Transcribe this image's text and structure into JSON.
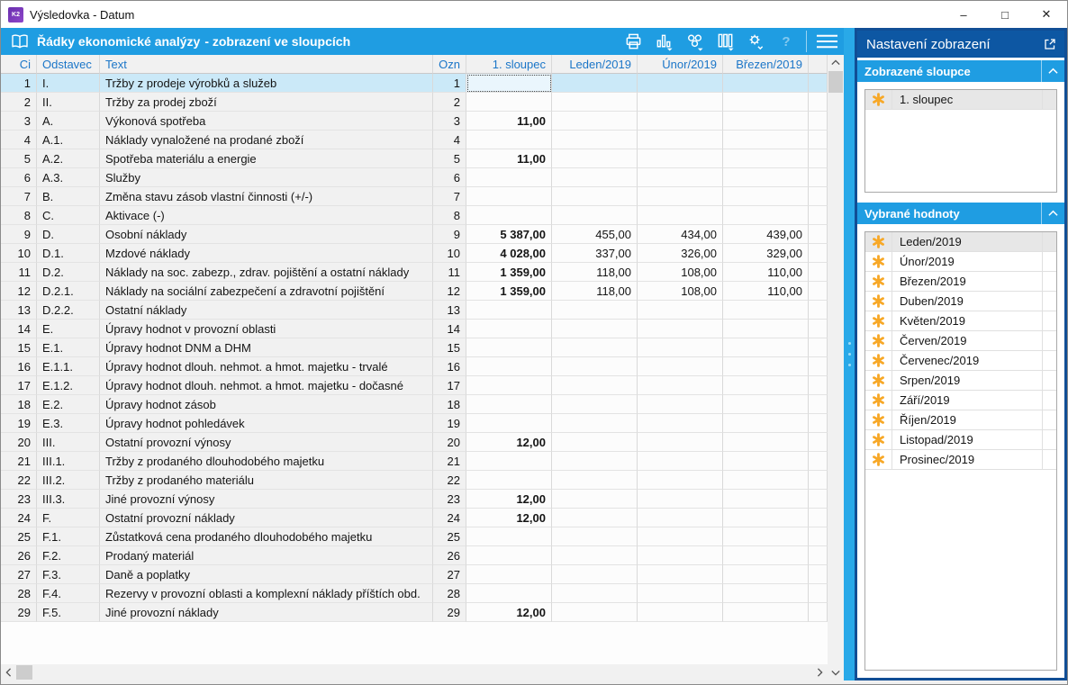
{
  "window": {
    "title": "Výsledovka - Datum",
    "logo": "K2",
    "controls": {
      "minimize": "–",
      "maximize": "□",
      "close": "✕"
    }
  },
  "toolbar": {
    "title": "Řádky ekonomické analýzy",
    "subtitle": "- zobrazení ve sloupcích",
    "help_label": "?",
    "icons": [
      "book-icon",
      "print-icon",
      "chart-icon",
      "gears-icon",
      "columns-icon",
      "settings-icon",
      "help-icon",
      "menu-icon"
    ]
  },
  "table": {
    "selected_row_index": 0,
    "focused_column": "col1",
    "columns": [
      {
        "key": "ci",
        "label": "Ci",
        "align": "right"
      },
      {
        "key": "odstavec",
        "label": "Odstavec",
        "align": "left"
      },
      {
        "key": "text",
        "label": "Text",
        "align": "left"
      },
      {
        "key": "ozn",
        "label": "Ozn",
        "align": "right"
      },
      {
        "key": "col1",
        "label": "1. sloupec",
        "align": "right"
      },
      {
        "key": "leden",
        "label": "Leden/2019",
        "align": "right"
      },
      {
        "key": "unor",
        "label": "Únor/2019",
        "align": "right"
      },
      {
        "key": "brezen",
        "label": "Březen/2019",
        "align": "right"
      },
      {
        "key": "fill",
        "label": "",
        "align": "left"
      }
    ],
    "rows": [
      {
        "ci": "1",
        "odstavec": "I.",
        "text": "Tržby z prodeje výrobků a služeb",
        "ozn": "1",
        "col1": "",
        "leden": "",
        "unor": "",
        "brezen": ""
      },
      {
        "ci": "2",
        "odstavec": "II.",
        "text": "Tržby za prodej zboží",
        "ozn": "2",
        "col1": "",
        "leden": "",
        "unor": "",
        "brezen": ""
      },
      {
        "ci": "3",
        "odstavec": "A.",
        "text": "Výkonová spotřeba",
        "ozn": "3",
        "col1": "11,00",
        "leden": "",
        "unor": "",
        "brezen": ""
      },
      {
        "ci": "4",
        "odstavec": "A.1.",
        "text": "Náklady vynaložené na prodané zboží",
        "ozn": "4",
        "col1": "",
        "leden": "",
        "unor": "",
        "brezen": ""
      },
      {
        "ci": "5",
        "odstavec": "A.2.",
        "text": "Spotřeba materiálu a energie",
        "ozn": "5",
        "col1": "11,00",
        "leden": "",
        "unor": "",
        "brezen": ""
      },
      {
        "ci": "6",
        "odstavec": "A.3.",
        "text": "Služby",
        "ozn": "6",
        "col1": "",
        "leden": "",
        "unor": "",
        "brezen": ""
      },
      {
        "ci": "7",
        "odstavec": "B.",
        "text": "Změna stavu zásob vlastní činnosti (+/-)",
        "ozn": "7",
        "col1": "",
        "leden": "",
        "unor": "",
        "brezen": ""
      },
      {
        "ci": "8",
        "odstavec": "C.",
        "text": "Aktivace (-)",
        "ozn": "8",
        "col1": "",
        "leden": "",
        "unor": "",
        "brezen": ""
      },
      {
        "ci": "9",
        "odstavec": "D.",
        "text": "Osobní náklady",
        "ozn": "9",
        "col1": "5 387,00",
        "leden": "455,00",
        "unor": "434,00",
        "brezen": "439,00"
      },
      {
        "ci": "10",
        "odstavec": "D.1.",
        "text": "Mzdové náklady",
        "ozn": "10",
        "col1": "4 028,00",
        "leden": "337,00",
        "unor": "326,00",
        "brezen": "329,00"
      },
      {
        "ci": "11",
        "odstavec": "D.2.",
        "text": "Náklady na soc. zabezp., zdrav. pojištění a ostatní náklady",
        "ozn": "11",
        "col1": "1 359,00",
        "leden": "118,00",
        "unor": "108,00",
        "brezen": "110,00"
      },
      {
        "ci": "12",
        "odstavec": "D.2.1.",
        "text": "Náklady na sociální zabezpečení a zdravotní pojištění",
        "ozn": "12",
        "col1": "1 359,00",
        "leden": "118,00",
        "unor": "108,00",
        "brezen": "110,00"
      },
      {
        "ci": "13",
        "odstavec": "D.2.2.",
        "text": "Ostatní náklady",
        "ozn": "13",
        "col1": "",
        "leden": "",
        "unor": "",
        "brezen": ""
      },
      {
        "ci": "14",
        "odstavec": "E.",
        "text": "Úpravy hodnot v provozní oblasti",
        "ozn": "14",
        "col1": "",
        "leden": "",
        "unor": "",
        "brezen": ""
      },
      {
        "ci": "15",
        "odstavec": "E.1.",
        "text": "Úpravy hodnot DNM a DHM",
        "ozn": "15",
        "col1": "",
        "leden": "",
        "unor": "",
        "brezen": ""
      },
      {
        "ci": "16",
        "odstavec": "E.1.1.",
        "text": "Úpravy hodnot dlouh. nehmot. a hmot. majetku - trvalé",
        "ozn": "16",
        "col1": "",
        "leden": "",
        "unor": "",
        "brezen": ""
      },
      {
        "ci": "17",
        "odstavec": "E.1.2.",
        "text": "Úpravy hodnot dlouh. nehmot. a hmot. majetku - dočasné",
        "ozn": "17",
        "col1": "",
        "leden": "",
        "unor": "",
        "brezen": ""
      },
      {
        "ci": "18",
        "odstavec": "E.2.",
        "text": "Úpravy hodnot zásob",
        "ozn": "18",
        "col1": "",
        "leden": "",
        "unor": "",
        "brezen": ""
      },
      {
        "ci": "19",
        "odstavec": "E.3.",
        "text": "Úpravy hodnot pohledávek",
        "ozn": "19",
        "col1": "",
        "leden": "",
        "unor": "",
        "brezen": ""
      },
      {
        "ci": "20",
        "odstavec": "III.",
        "text": "Ostatní provozní výnosy",
        "ozn": "20",
        "col1": "12,00",
        "leden": "",
        "unor": "",
        "brezen": ""
      },
      {
        "ci": "21",
        "odstavec": "III.1.",
        "text": "Tržby z prodaného dlouhodobého majetku",
        "ozn": "21",
        "col1": "",
        "leden": "",
        "unor": "",
        "brezen": ""
      },
      {
        "ci": "22",
        "odstavec": "III.2.",
        "text": "Tržby z prodaného materiálu",
        "ozn": "22",
        "col1": "",
        "leden": "",
        "unor": "",
        "brezen": ""
      },
      {
        "ci": "23",
        "odstavec": "III.3.",
        "text": "Jiné provozní výnosy",
        "ozn": "23",
        "col1": "12,00",
        "leden": "",
        "unor": "",
        "brezen": ""
      },
      {
        "ci": "24",
        "odstavec": "F.",
        "text": "Ostatní provozní náklady",
        "ozn": "24",
        "col1": "12,00",
        "leden": "",
        "unor": "",
        "brezen": ""
      },
      {
        "ci": "25",
        "odstavec": "F.1.",
        "text": "Zůstatková cena prodaného dlouhodobého majetku",
        "ozn": "25",
        "col1": "",
        "leden": "",
        "unor": "",
        "brezen": ""
      },
      {
        "ci": "26",
        "odstavec": "F.2.",
        "text": "Prodaný materiál",
        "ozn": "26",
        "col1": "",
        "leden": "",
        "unor": "",
        "brezen": ""
      },
      {
        "ci": "27",
        "odstavec": "F.3.",
        "text": "Daně a poplatky",
        "ozn": "27",
        "col1": "",
        "leden": "",
        "unor": "",
        "brezen": ""
      },
      {
        "ci": "28",
        "odstavec": "F.4.",
        "text": "Rezervy v provozní oblasti a komplexní náklady příštích obd.",
        "ozn": "28",
        "col1": "",
        "leden": "",
        "unor": "",
        "brezen": ""
      },
      {
        "ci": "29",
        "odstavec": "F.5.",
        "text": "Jiné provozní náklady",
        "ozn": "29",
        "col1": "12,00",
        "leden": "",
        "unor": "",
        "brezen": ""
      }
    ]
  },
  "panel": {
    "title": "Nastavení zobrazení",
    "sections": [
      {
        "title": "Zobrazené sloupce",
        "items": [
          {
            "label": "1. sloupec",
            "selected": true
          }
        ]
      },
      {
        "title": "Vybrané hodnoty",
        "items": [
          {
            "label": "Leden/2019",
            "selected": true
          },
          {
            "label": "Únor/2019"
          },
          {
            "label": "Březen/2019"
          },
          {
            "label": "Duben/2019"
          },
          {
            "label": "Květen/2019"
          },
          {
            "label": "Červen/2019"
          },
          {
            "label": "Červenec/2019"
          },
          {
            "label": "Srpen/2019"
          },
          {
            "label": "Září/2019"
          },
          {
            "label": "Říjen/2019"
          },
          {
            "label": "Listopad/2019"
          },
          {
            "label": "Prosinec/2019"
          }
        ]
      }
    ]
  },
  "colors": {
    "accent_azure": "#1f9de2",
    "panel_header_blue": "#0d57a3",
    "panel_border_blue": "#114e95",
    "selection_blue": "#cbe9f8",
    "asterisk_orange": "#f7a827",
    "header_text_blue": "#1b76c8"
  }
}
